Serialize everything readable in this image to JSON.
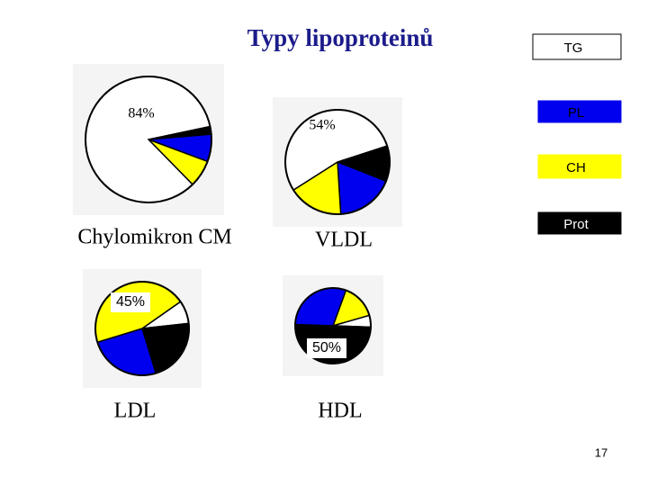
{
  "title": "Typy lipoproteinů",
  "page_number": "17",
  "chart_data": [
    {
      "type": "pie",
      "title": "Chylomikron CM",
      "categories": [
        "TG",
        "PL",
        "CH",
        "Prot"
      ],
      "colors": [
        "#ffffff",
        "#0000ee",
        "#ffff00",
        "#000000"
      ],
      "values": [
        84,
        7,
        7,
        2
      ],
      "value_labels": [
        "84%",
        null,
        null,
        null
      ]
    },
    {
      "type": "pie",
      "title": "VLDL",
      "categories": [
        "TG",
        "PL",
        "CH",
        "Prot"
      ],
      "colors": [
        "#ffffff",
        "#0000ee",
        "#ffff00",
        "#000000"
      ],
      "values": [
        54,
        18,
        17,
        11
      ],
      "value_labels": [
        "54%",
        null,
        null,
        null
      ]
    },
    {
      "type": "pie",
      "title": "LDL",
      "categories": [
        "TG",
        "PL",
        "CH",
        "Prot"
      ],
      "colors": [
        "#ffffff",
        "#0000ee",
        "#ffff00",
        "#000000"
      ],
      "values": [
        8,
        25,
        45,
        22
      ],
      "value_labels": [
        null,
        null,
        "45%",
        null
      ]
    },
    {
      "type": "pie",
      "title": "HDL",
      "categories": [
        "TG",
        "PL",
        "CH",
        "Prot"
      ],
      "colors": [
        "#ffffff",
        "#0000ee",
        "#ffff00",
        "#000000"
      ],
      "values": [
        5,
        30,
        15,
        50
      ],
      "value_labels": [
        null,
        null,
        null,
        "50%"
      ]
    }
  ]
}
